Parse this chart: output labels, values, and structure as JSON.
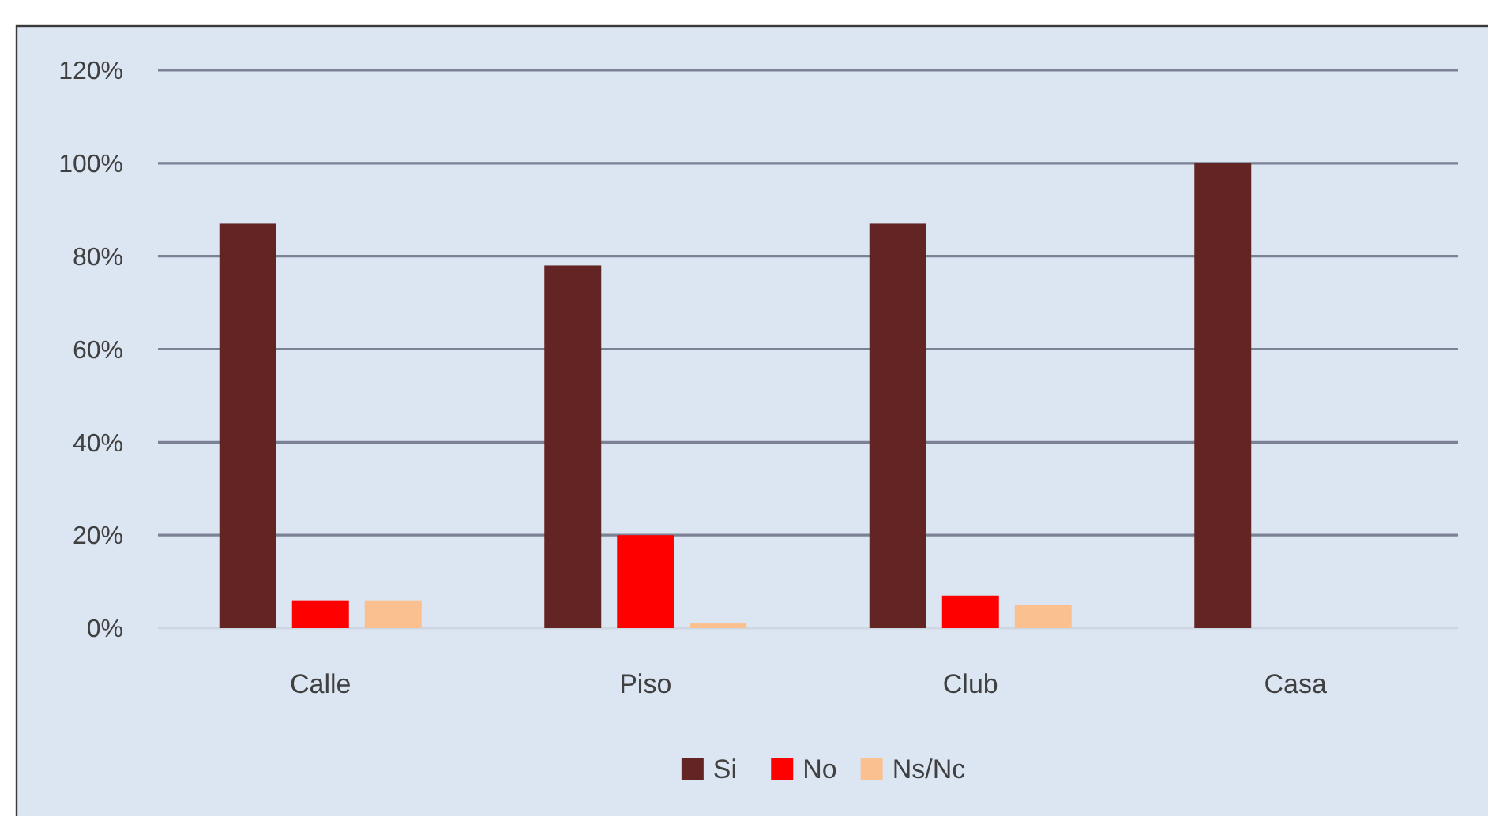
{
  "chart_data": {
    "type": "bar",
    "categories": [
      "Calle",
      "Piso",
      "Club",
      "Casa"
    ],
    "series": [
      {
        "name": "Si",
        "color": "#632523",
        "values": [
          87,
          78,
          87,
          100
        ]
      },
      {
        "name": "No",
        "color": "#ff0000",
        "values": [
          6,
          20,
          7,
          0
        ]
      },
      {
        "name": "Ns/Nc",
        "color": "#fac090",
        "values": [
          6,
          1,
          5,
          0
        ]
      }
    ],
    "ylim": [
      0,
      120
    ],
    "yticks": [
      {
        "value": 0,
        "label": "0%"
      },
      {
        "value": 20,
        "label": "20%"
      },
      {
        "value": 40,
        "label": "40%"
      },
      {
        "value": 60,
        "label": "60%"
      },
      {
        "value": 80,
        "label": "80%"
      },
      {
        "value": 100,
        "label": "100%"
      },
      {
        "value": 120,
        "label": "120%"
      }
    ],
    "grid": "y",
    "legend": "bottom"
  }
}
